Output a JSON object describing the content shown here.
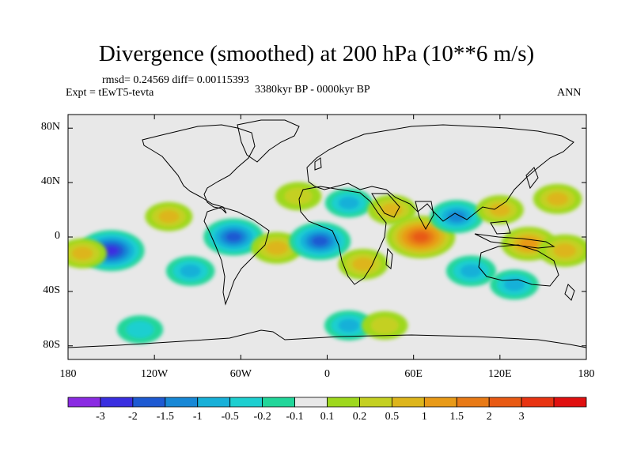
{
  "title": "Divergence (smoothed) at 200 hPa (10**6 m/s)",
  "stats": "rmsd= 0.24569 diff= 0.00115393",
  "experiment": "Expt = tEwT5-tevta",
  "period": "3380kyr BP - 0000kyr BP",
  "season": "ANN",
  "lat_ticks": [
    {
      "label": "80N",
      "lat": 80
    },
    {
      "label": "40N",
      "lat": 40
    },
    {
      "label": "0",
      "lat": 0
    },
    {
      "label": "40S",
      "lat": -40
    },
    {
      "label": "80S",
      "lat": -80
    }
  ],
  "lon_ticks": [
    {
      "label": "180",
      "lon": -180
    },
    {
      "label": "120W",
      "lon": -120
    },
    {
      "label": "60W",
      "lon": -60
    },
    {
      "label": "0",
      "lon": 0
    },
    {
      "label": "60E",
      "lon": 60
    },
    {
      "label": "120E",
      "lon": 120
    },
    {
      "label": "180",
      "lon": 180
    }
  ],
  "colorbar": {
    "colors": [
      "#8a2be2",
      "#3a2fe0",
      "#1e5ad2",
      "#1888d6",
      "#18b0d8",
      "#1ecfd0",
      "#22d69a",
      "#e8e8e8",
      "#9ed81e",
      "#c4d022",
      "#ddb51c",
      "#e89a18",
      "#e87a16",
      "#e85a14",
      "#e83412",
      "#e01010"
    ],
    "labels": [
      "-3",
      "-2",
      "-1.5",
      "-1",
      "-0.5",
      "-0.2",
      "-0.1",
      "0.1",
      "0.2",
      "0.5",
      "1",
      "1.5",
      "2",
      "3"
    ]
  },
  "chart_data": {
    "type": "heatmap",
    "variable": "Divergence (smoothed) at 200 hPa",
    "units": "10**6 m/s",
    "contour_levels": [
      -3,
      -2,
      -1.5,
      -1,
      -0.5,
      -0.2,
      -0.1,
      0.1,
      0.2,
      0.5,
      1,
      1.5,
      2,
      3
    ],
    "xlim": [
      -180,
      180
    ],
    "ylim": [
      -90,
      90
    ],
    "anomaly_centers": [
      {
        "lon": -150,
        "lat": -10,
        "value": -2.0
      },
      {
        "lon": -170,
        "lat": -12,
        "value": 0.6
      },
      {
        "lon": -110,
        "lat": 15,
        "value": 0.5
      },
      {
        "lon": -95,
        "lat": -25,
        "value": -0.6
      },
      {
        "lon": -65,
        "lat": 0,
        "value": -1.5
      },
      {
        "lon": -35,
        "lat": -8,
        "value": 0.8
      },
      {
        "lon": -20,
        "lat": 30,
        "value": 0.4
      },
      {
        "lon": -5,
        "lat": -3,
        "value": -1.6
      },
      {
        "lon": 15,
        "lat": 25,
        "value": -0.5
      },
      {
        "lon": 25,
        "lat": -20,
        "value": 0.7
      },
      {
        "lon": 45,
        "lat": 20,
        "value": 0.6
      },
      {
        "lon": 65,
        "lat": 0,
        "value": 2.2
      },
      {
        "lon": 90,
        "lat": 15,
        "value": -1.0
      },
      {
        "lon": 100,
        "lat": -25,
        "value": -0.7
      },
      {
        "lon": 120,
        "lat": 20,
        "value": 0.5
      },
      {
        "lon": 140,
        "lat": -5,
        "value": 1.1
      },
      {
        "lon": 165,
        "lat": -10,
        "value": 0.9
      },
      {
        "lon": 160,
        "lat": 28,
        "value": 0.6
      },
      {
        "lon": 130,
        "lat": -35,
        "value": -0.6
      },
      {
        "lon": 15,
        "lat": -65,
        "value": -0.6
      },
      {
        "lon": 40,
        "lat": -65,
        "value": 0.4
      },
      {
        "lon": -130,
        "lat": -68,
        "value": -0.4
      }
    ]
  }
}
